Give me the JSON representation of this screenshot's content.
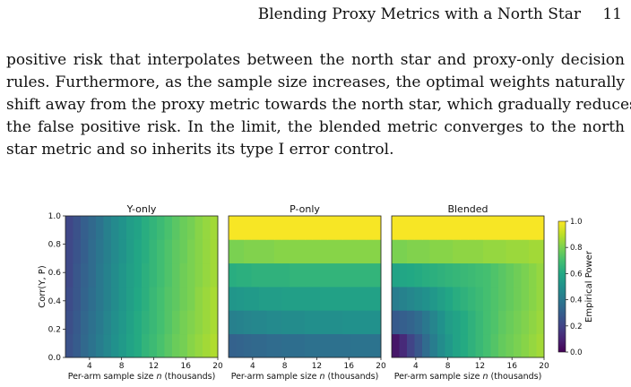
{
  "header": {
    "running_title": "Blending Proxy Metrics with a North Star",
    "page_number": "11"
  },
  "paragraph": {
    "lines": [
      "positive risk that interpolates between the north star and proxy-only decision",
      "rules. Furthermore, as the sample size increases, the optimal weights naturally",
      "shift away from the proxy metric towards the north star, which gradually reduces",
      "the false positive risk. In the limit, the blended metric converges to the north",
      "star metric and so inherits its type I error control."
    ]
  },
  "chart_data": {
    "type": "heatmap",
    "panels": [
      {
        "title": "Y-only",
        "values": [
          [
            0.25,
            0.29,
            0.34,
            0.38,
            0.42,
            0.46,
            0.5,
            0.54,
            0.58,
            0.61,
            0.65,
            0.68,
            0.71,
            0.74,
            0.77,
            0.79,
            0.82,
            0.84,
            0.86,
            0.88
          ],
          [
            0.24,
            0.28,
            0.33,
            0.37,
            0.41,
            0.45,
            0.49,
            0.53,
            0.57,
            0.61,
            0.64,
            0.67,
            0.7,
            0.73,
            0.76,
            0.79,
            0.81,
            0.83,
            0.85,
            0.87
          ],
          [
            0.23,
            0.27,
            0.32,
            0.36,
            0.4,
            0.44,
            0.48,
            0.52,
            0.56,
            0.6,
            0.63,
            0.67,
            0.7,
            0.73,
            0.75,
            0.78,
            0.8,
            0.83,
            0.85,
            0.87
          ],
          [
            0.22,
            0.27,
            0.31,
            0.35,
            0.4,
            0.44,
            0.48,
            0.52,
            0.56,
            0.59,
            0.63,
            0.66,
            0.69,
            0.72,
            0.75,
            0.78,
            0.8,
            0.82,
            0.84,
            0.86
          ],
          [
            0.22,
            0.26,
            0.3,
            0.35,
            0.39,
            0.43,
            0.47,
            0.51,
            0.55,
            0.59,
            0.62,
            0.66,
            0.69,
            0.72,
            0.75,
            0.77,
            0.8,
            0.82,
            0.84,
            0.86
          ],
          [
            0.21,
            0.25,
            0.3,
            0.34,
            0.38,
            0.43,
            0.47,
            0.51,
            0.55,
            0.58,
            0.62,
            0.65,
            0.68,
            0.71,
            0.74,
            0.77,
            0.79,
            0.82,
            0.84,
            0.86
          ]
        ]
      },
      {
        "title": "P-only",
        "values": [
          [
            0.31,
            0.32,
            0.33,
            0.34,
            0.34,
            0.35,
            0.35,
            0.36,
            0.36,
            0.36,
            0.37,
            0.37,
            0.37,
            0.37,
            0.37,
            0.37,
            0.38,
            0.38,
            0.38,
            0.38
          ],
          [
            0.43,
            0.44,
            0.45,
            0.46,
            0.46,
            0.47,
            0.47,
            0.48,
            0.48,
            0.48,
            0.49,
            0.49,
            0.49,
            0.49,
            0.49,
            0.5,
            0.5,
            0.5,
            0.5,
            0.5
          ],
          [
            0.52,
            0.53,
            0.54,
            0.54,
            0.55,
            0.55,
            0.55,
            0.56,
            0.56,
            0.56,
            0.56,
            0.56,
            0.57,
            0.57,
            0.57,
            0.57,
            0.57,
            0.57,
            0.57,
            0.57
          ],
          [
            0.62,
            0.63,
            0.63,
            0.64,
            0.64,
            0.64,
            0.64,
            0.64,
            0.65,
            0.65,
            0.65,
            0.65,
            0.65,
            0.65,
            0.65,
            0.65,
            0.65,
            0.65,
            0.65,
            0.65
          ],
          [
            0.8,
            0.8,
            0.81,
            0.81,
            0.81,
            0.81,
            0.82,
            0.82,
            0.82,
            0.82,
            0.82,
            0.82,
            0.82,
            0.82,
            0.82,
            0.82,
            0.82,
            0.82,
            0.82,
            0.82
          ],
          [
            0.99,
            0.99,
            0.99,
            0.99,
            0.99,
            0.99,
            0.99,
            0.99,
            0.99,
            0.99,
            0.99,
            0.99,
            0.99,
            0.99,
            0.99,
            0.99,
            0.99,
            0.99,
            0.99,
            0.99
          ]
        ]
      },
      {
        "title": "Blended",
        "values": [
          [
            0.06,
            0.12,
            0.2,
            0.27,
            0.35,
            0.42,
            0.48,
            0.53,
            0.58,
            0.61,
            0.64,
            0.67,
            0.7,
            0.73,
            0.76,
            0.78,
            0.8,
            0.82,
            0.84,
            0.86
          ],
          [
            0.28,
            0.3,
            0.32,
            0.35,
            0.4,
            0.45,
            0.5,
            0.55,
            0.58,
            0.61,
            0.64,
            0.67,
            0.7,
            0.72,
            0.75,
            0.77,
            0.79,
            0.81,
            0.83,
            0.85
          ],
          [
            0.42,
            0.44,
            0.46,
            0.48,
            0.5,
            0.53,
            0.56,
            0.59,
            0.62,
            0.64,
            0.66,
            0.68,
            0.7,
            0.72,
            0.74,
            0.76,
            0.78,
            0.8,
            0.82,
            0.84
          ],
          [
            0.58,
            0.59,
            0.6,
            0.61,
            0.62,
            0.63,
            0.64,
            0.65,
            0.66,
            0.67,
            0.68,
            0.69,
            0.7,
            0.72,
            0.74,
            0.76,
            0.78,
            0.8,
            0.82,
            0.84
          ],
          [
            0.8,
            0.8,
            0.81,
            0.81,
            0.81,
            0.82,
            0.82,
            0.82,
            0.83,
            0.83,
            0.83,
            0.83,
            0.84,
            0.84,
            0.84,
            0.85,
            0.85,
            0.85,
            0.86,
            0.86
          ],
          [
            0.99,
            0.99,
            0.99,
            0.99,
            0.99,
            0.99,
            0.99,
            0.99,
            0.99,
            0.99,
            0.99,
            0.99,
            0.99,
            0.99,
            0.99,
            0.99,
            0.99,
            0.99,
            0.99,
            0.99
          ]
        ]
      }
    ],
    "xlabel": "Per-arm sample size n (thousands)",
    "ylabel": "Corr(Y, P)",
    "xlim": [
      1,
      20
    ],
    "ylim": [
      0.0,
      1.0
    ],
    "xticks": [
      "4",
      "8",
      "12",
      "16",
      "20"
    ],
    "yticks": [
      "0.0",
      "0.2",
      "0.4",
      "0.6",
      "0.8",
      "1.0"
    ],
    "colorbar": {
      "label": "Empirical Power",
      "range": [
        0.0,
        1.0
      ],
      "ticks": [
        "0.0",
        "0.2",
        "0.4",
        "0.6",
        "0.8",
        "1.0"
      ],
      "colormap": "viridis"
    }
  }
}
